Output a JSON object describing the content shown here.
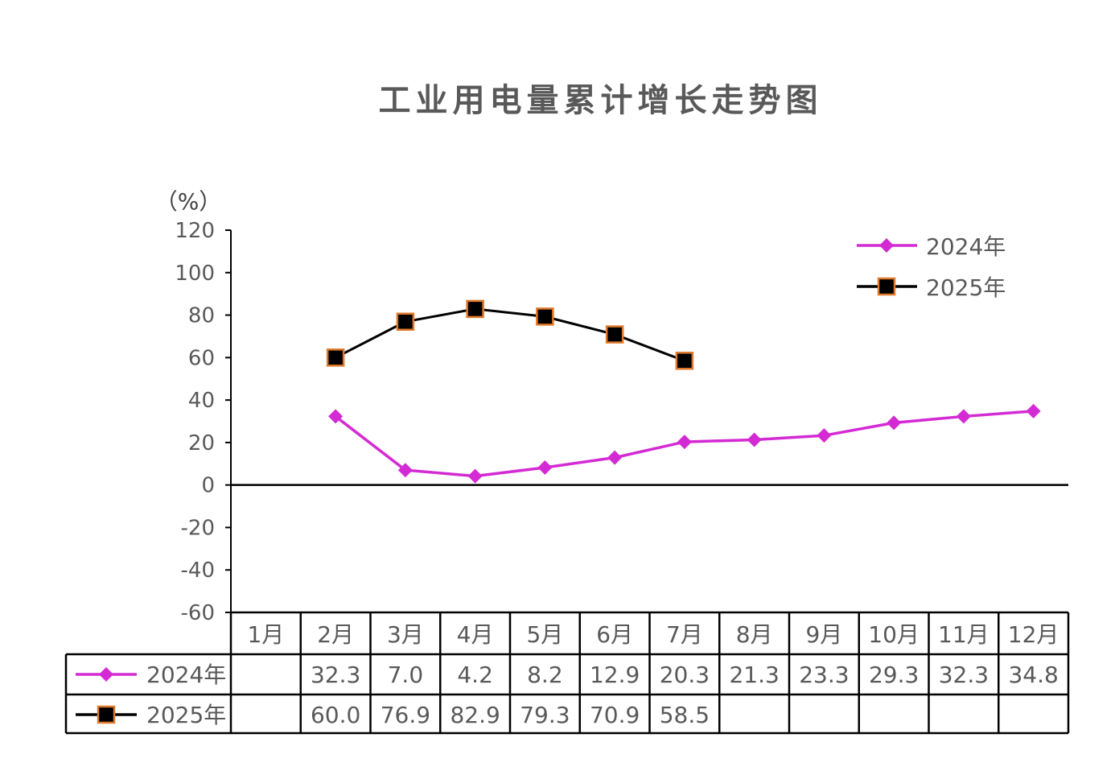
{
  "title": "工业用电量累计增长走势图",
  "chart_data": {
    "type": "line",
    "title": "工业用电量累计增长走势图",
    "unit_label": "（%）",
    "categories": [
      "1月",
      "2月",
      "3月",
      "4月",
      "5月",
      "6月",
      "7月",
      "8月",
      "9月",
      "10月",
      "11月",
      "12月"
    ],
    "ylim": [
      -60,
      120
    ],
    "yticks": [
      "-60",
      "-40",
      "-20",
      "0",
      "20",
      "40",
      "60",
      "80",
      "100",
      "120"
    ],
    "legend_position": "top-right",
    "grid": false,
    "series": [
      {
        "name": "2024年",
        "color": "#d42ad4",
        "marker": "diamond",
        "values": [
          null,
          32.3,
          7.0,
          4.2,
          8.2,
          12.9,
          20.3,
          21.3,
          23.3,
          29.3,
          32.3,
          34.8
        ],
        "labels": [
          "",
          "32.3",
          "7.0",
          "4.2",
          "8.2",
          "12.9",
          "20.3",
          "21.3",
          "23.3",
          "29.3",
          "32.3",
          "34.8"
        ]
      },
      {
        "name": "2025年",
        "color": "#000000",
        "marker_edge": "#e0782b",
        "marker": "square",
        "values": [
          null,
          60.0,
          76.9,
          82.9,
          79.3,
          70.9,
          58.5,
          null,
          null,
          null,
          null,
          null
        ],
        "labels": [
          "",
          "60.0",
          "76.9",
          "82.9",
          "79.3",
          "70.9",
          "58.5",
          "",
          "",
          "",
          "",
          ""
        ]
      }
    ]
  }
}
